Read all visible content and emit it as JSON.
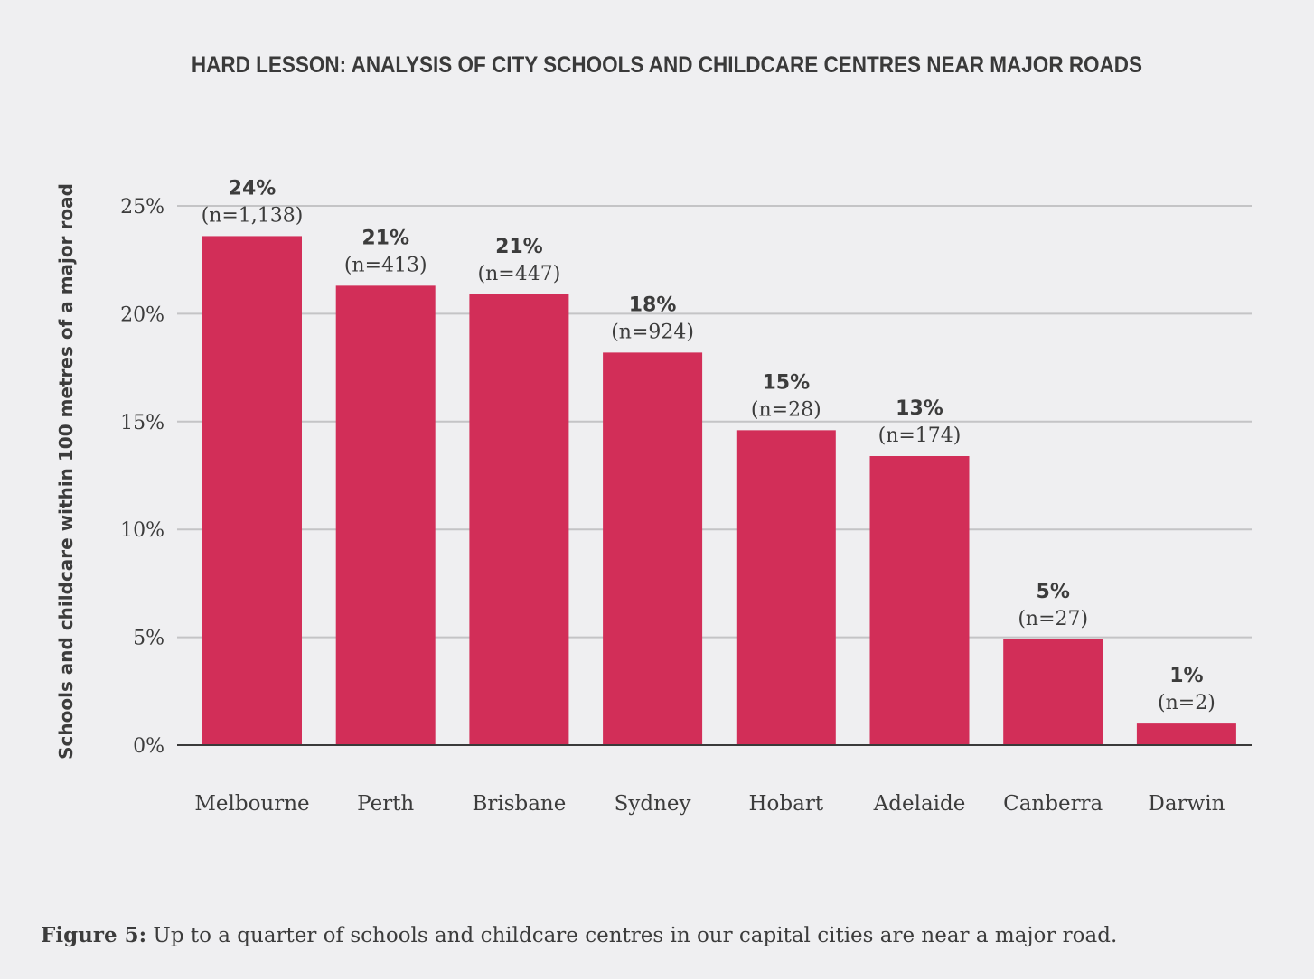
{
  "chart_data": {
    "type": "bar",
    "title": "HARD LESSON: ANALYSIS OF CITY SCHOOLS AND CHILDCARE CENTRES NEAR MAJOR ROADS",
    "xlabel": "",
    "ylabel": "Schools and childcare within 100 metres of a major road",
    "categories": [
      "Melbourne",
      "Perth",
      "Brisbane",
      "Sydney",
      "Hobart",
      "Adelaide",
      "Canberra",
      "Darwin"
    ],
    "values": [
      23.6,
      21.3,
      20.9,
      18.2,
      14.6,
      13.4,
      4.9,
      1.0
    ],
    "value_labels": [
      "24%",
      "21%",
      "21%",
      "18%",
      "15%",
      "13%",
      "5%",
      "1%"
    ],
    "n_labels": [
      "(n=1,138)",
      "(n=413)",
      "(n=447)",
      "(n=924)",
      "(n=28)",
      "(n=174)",
      "(n=27)",
      "(n=2)"
    ],
    "ylim": [
      0,
      25
    ],
    "yticks": [
      0,
      5,
      10,
      15,
      20,
      25
    ],
    "ytick_labels": [
      "0%",
      "5%",
      "10%",
      "15%",
      "20%",
      "25%"
    ],
    "grid": true,
    "bar_color": "#d22e58"
  },
  "caption": {
    "label": "Figure 5:",
    "text": " Up to a quarter of schools and childcare centres in our capital cities are near a major road."
  }
}
